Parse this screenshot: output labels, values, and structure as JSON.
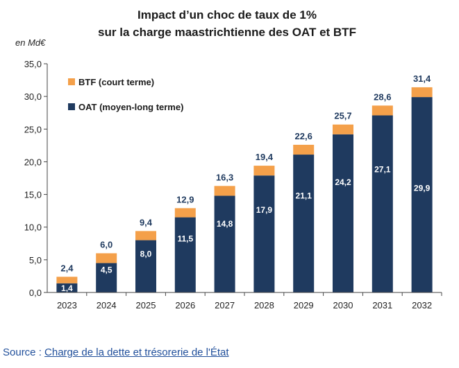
{
  "chart_data": {
    "type": "bar",
    "stacked": true,
    "title": "Impact d’un choc de taux de 1%",
    "subtitle": "sur la charge maastrichtienne des OAT et BTF",
    "ylabel": "en Md€",
    "categories": [
      "2023",
      "2024",
      "2025",
      "2026",
      "2027",
      "2028",
      "2029",
      "2030",
      "2031",
      "2032"
    ],
    "series": [
      {
        "name": "OAT (moyen-long terme)",
        "values": [
          1.4,
          4.5,
          8.0,
          11.5,
          14.8,
          17.9,
          21.1,
          24.2,
          27.1,
          29.9
        ],
        "labels": [
          "1,4",
          "4,5",
          "8,0",
          "11,5",
          "14,8",
          "17,9",
          "21,1",
          "24,2",
          "27,1",
          "29,9"
        ],
        "color": "#1f3a5f"
      },
      {
        "name": "BTF (court terme)",
        "values": [
          1.0,
          1.5,
          1.4,
          1.4,
          1.5,
          1.5,
          1.5,
          1.5,
          1.5,
          1.5
        ],
        "color": "#f4a04a"
      }
    ],
    "totals": [
      2.4,
      6.0,
      9.4,
      12.9,
      16.3,
      19.4,
      22.6,
      25.7,
      28.6,
      31.4
    ],
    "total_labels": [
      "2,4",
      "6,0",
      "9,4",
      "12,9",
      "16,3",
      "19,4",
      "22,6",
      "25,7",
      "28,6",
      "31,4"
    ],
    "ylim": [
      0,
      35
    ],
    "yticks": [
      0,
      5,
      10,
      15,
      20,
      25,
      30,
      35
    ],
    "ytick_labels": [
      "0,0",
      "5,0",
      "10,0",
      "15,0",
      "20,0",
      "25,0",
      "30,0",
      "35,0"
    ],
    "legend": [
      "BTF (court terme)",
      "OAT (moyen-long terme)"
    ],
    "legend_position": "top-left",
    "grid": false
  },
  "source": {
    "prefix": "Source : ",
    "link_text": "Charge de la dette et trésorerie de l'État"
  }
}
